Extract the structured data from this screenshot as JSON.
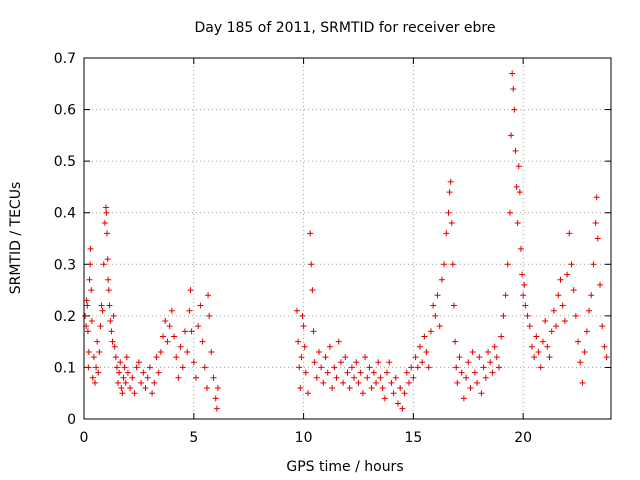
{
  "chart_data": {
    "type": "scatter",
    "title": "Day 185 of 2011, SRMTID for receiver ebre",
    "xlabel": "GPS time / hours",
    "ylabel": "SRMTID / TECUs",
    "xlim": [
      0,
      24
    ],
    "ylim": [
      0,
      0.7
    ],
    "xticks": [
      0,
      5,
      10,
      15,
      20
    ],
    "yticks": [
      0,
      0.1,
      0.2,
      0.3,
      0.4,
      0.5,
      0.6,
      0.7
    ],
    "grid": true,
    "marker": "+",
    "color": "#e00000",
    "series": [
      {
        "name": "SRMTID",
        "points": [
          [
            0.05,
            0.2
          ],
          [
            0.1,
            0.18
          ],
          [
            0.12,
            0.23
          ],
          [
            0.15,
            0.22
          ],
          [
            0.18,
            0.17
          ],
          [
            0.2,
            0.1
          ],
          [
            0.22,
            0.13
          ],
          [
            0.25,
            0.27
          ],
          [
            0.28,
            0.3
          ],
          [
            0.3,
            0.33
          ],
          [
            0.33,
            0.25
          ],
          [
            0.36,
            0.19
          ],
          [
            0.4,
            0.08
          ],
          [
            0.45,
            0.12
          ],
          [
            0.5,
            0.07
          ],
          [
            0.55,
            0.1
          ],
          [
            0.6,
            0.15
          ],
          [
            0.65,
            0.09
          ],
          [
            0.7,
            0.13
          ],
          [
            0.75,
            0.18
          ],
          [
            0.8,
            0.22
          ],
          [
            0.85,
            0.21
          ],
          [
            0.9,
            0.3
          ],
          [
            0.95,
            0.38
          ],
          [
            1.0,
            0.41
          ],
          [
            1.02,
            0.4
          ],
          [
            1.05,
            0.36
          ],
          [
            1.08,
            0.31
          ],
          [
            1.1,
            0.27
          ],
          [
            1.13,
            0.25
          ],
          [
            1.16,
            0.22
          ],
          [
            1.2,
            0.19
          ],
          [
            1.25,
            0.17
          ],
          [
            1.3,
            0.15
          ],
          [
            1.35,
            0.2
          ],
          [
            1.4,
            0.14
          ],
          [
            1.45,
            0.12
          ],
          [
            1.5,
            0.1
          ],
          [
            1.55,
            0.07
          ],
          [
            1.6,
            0.09
          ],
          [
            1.65,
            0.11
          ],
          [
            1.7,
            0.06
          ],
          [
            1.75,
            0.05
          ],
          [
            1.8,
            0.08
          ],
          [
            1.85,
            0.1
          ],
          [
            1.9,
            0.07
          ],
          [
            1.95,
            0.12
          ],
          [
            2.0,
            0.09
          ],
          [
            2.1,
            0.06
          ],
          [
            2.2,
            0.08
          ],
          [
            2.3,
            0.05
          ],
          [
            2.4,
            0.1
          ],
          [
            2.5,
            0.11
          ],
          [
            2.6,
            0.07
          ],
          [
            2.7,
            0.09
          ],
          [
            2.8,
            0.06
          ],
          [
            2.9,
            0.08
          ],
          [
            3.0,
            0.1
          ],
          [
            3.1,
            0.05
          ],
          [
            3.2,
            0.07
          ],
          [
            3.3,
            0.12
          ],
          [
            3.4,
            0.09
          ],
          [
            3.5,
            0.13
          ],
          [
            3.6,
            0.16
          ],
          [
            3.7,
            0.19
          ],
          [
            3.8,
            0.15
          ],
          [
            3.9,
            0.18
          ],
          [
            4.0,
            0.21
          ],
          [
            4.1,
            0.16
          ],
          [
            4.2,
            0.12
          ],
          [
            4.3,
            0.08
          ],
          [
            4.4,
            0.14
          ],
          [
            4.5,
            0.1
          ],
          [
            4.6,
            0.17
          ],
          [
            4.7,
            0.13
          ],
          [
            4.8,
            0.21
          ],
          [
            4.85,
            0.25
          ],
          [
            4.9,
            0.17
          ],
          [
            5.0,
            0.11
          ],
          [
            5.1,
            0.08
          ],
          [
            5.2,
            0.18
          ],
          [
            5.3,
            0.22
          ],
          [
            5.4,
            0.15
          ],
          [
            5.5,
            0.1
          ],
          [
            5.6,
            0.06
          ],
          [
            5.65,
            0.24
          ],
          [
            5.7,
            0.2
          ],
          [
            5.8,
            0.13
          ],
          [
            5.9,
            0.08
          ],
          [
            6.0,
            0.04
          ],
          [
            6.05,
            0.02
          ],
          [
            6.1,
            0.06
          ],
          [
            9.7,
            0.21
          ],
          [
            9.75,
            0.15
          ],
          [
            9.8,
            0.1
          ],
          [
            9.85,
            0.06
          ],
          [
            9.9,
            0.12
          ],
          [
            9.95,
            0.2
          ],
          [
            10.0,
            0.18
          ],
          [
            10.05,
            0.14
          ],
          [
            10.1,
            0.09
          ],
          [
            10.2,
            0.05
          ],
          [
            10.3,
            0.36
          ],
          [
            10.35,
            0.3
          ],
          [
            10.4,
            0.25
          ],
          [
            10.45,
            0.17
          ],
          [
            10.5,
            0.11
          ],
          [
            10.6,
            0.08
          ],
          [
            10.7,
            0.13
          ],
          [
            10.8,
            0.1
          ],
          [
            10.9,
            0.07
          ],
          [
            11.0,
            0.12
          ],
          [
            11.1,
            0.09
          ],
          [
            11.2,
            0.14
          ],
          [
            11.3,
            0.06
          ],
          [
            11.4,
            0.1
          ],
          [
            11.5,
            0.08
          ],
          [
            11.6,
            0.15
          ],
          [
            11.7,
            0.11
          ],
          [
            11.8,
            0.07
          ],
          [
            11.9,
            0.12
          ],
          [
            12.0,
            0.09
          ],
          [
            12.1,
            0.06
          ],
          [
            12.2,
            0.1
          ],
          [
            12.3,
            0.08
          ],
          [
            12.4,
            0.11
          ],
          [
            12.5,
            0.07
          ],
          [
            12.6,
            0.09
          ],
          [
            12.7,
            0.05
          ],
          [
            12.8,
            0.12
          ],
          [
            12.9,
            0.08
          ],
          [
            13.0,
            0.1
          ],
          [
            13.1,
            0.06
          ],
          [
            13.2,
            0.09
          ],
          [
            13.3,
            0.07
          ],
          [
            13.4,
            0.11
          ],
          [
            13.5,
            0.08
          ],
          [
            13.6,
            0.06
          ],
          [
            13.7,
            0.04
          ],
          [
            13.8,
            0.09
          ],
          [
            13.9,
            0.11
          ],
          [
            14.0,
            0.07
          ],
          [
            14.1,
            0.05
          ],
          [
            14.2,
            0.08
          ],
          [
            14.3,
            0.03
          ],
          [
            14.4,
            0.06
          ],
          [
            14.5,
            0.02
          ],
          [
            14.6,
            0.05
          ],
          [
            14.7,
            0.09
          ],
          [
            14.8,
            0.07
          ],
          [
            14.9,
            0.1
          ],
          [
            15.0,
            0.08
          ],
          [
            15.1,
            0.12
          ],
          [
            15.2,
            0.1
          ],
          [
            15.3,
            0.14
          ],
          [
            15.4,
            0.11
          ],
          [
            15.5,
            0.16
          ],
          [
            15.6,
            0.13
          ],
          [
            15.7,
            0.1
          ],
          [
            15.8,
            0.17
          ],
          [
            15.9,
            0.22
          ],
          [
            16.0,
            0.2
          ],
          [
            16.1,
            0.24
          ],
          [
            16.2,
            0.18
          ],
          [
            16.3,
            0.27
          ],
          [
            16.4,
            0.3
          ],
          [
            16.5,
            0.36
          ],
          [
            16.6,
            0.4
          ],
          [
            16.65,
            0.44
          ],
          [
            16.7,
            0.46
          ],
          [
            16.75,
            0.38
          ],
          [
            16.8,
            0.3
          ],
          [
            16.85,
            0.22
          ],
          [
            16.9,
            0.15
          ],
          [
            16.95,
            0.1
          ],
          [
            17.0,
            0.07
          ],
          [
            17.1,
            0.12
          ],
          [
            17.2,
            0.09
          ],
          [
            17.3,
            0.04
          ],
          [
            17.4,
            0.08
          ],
          [
            17.5,
            0.11
          ],
          [
            17.6,
            0.06
          ],
          [
            17.7,
            0.13
          ],
          [
            17.8,
            0.09
          ],
          [
            17.9,
            0.07
          ],
          [
            18.0,
            0.12
          ],
          [
            18.1,
            0.05
          ],
          [
            18.2,
            0.1
          ],
          [
            18.3,
            0.08
          ],
          [
            18.4,
            0.13
          ],
          [
            18.5,
            0.11
          ],
          [
            18.6,
            0.09
          ],
          [
            18.7,
            0.14
          ],
          [
            18.8,
            0.12
          ],
          [
            18.9,
            0.1
          ],
          [
            19.0,
            0.16
          ],
          [
            19.1,
            0.2
          ],
          [
            19.2,
            0.24
          ],
          [
            19.3,
            0.3
          ],
          [
            19.4,
            0.4
          ],
          [
            19.45,
            0.55
          ],
          [
            19.5,
            0.67
          ],
          [
            19.55,
            0.64
          ],
          [
            19.6,
            0.6
          ],
          [
            19.65,
            0.52
          ],
          [
            19.7,
            0.45
          ],
          [
            19.75,
            0.38
          ],
          [
            19.8,
            0.49
          ],
          [
            19.85,
            0.44
          ],
          [
            19.9,
            0.33
          ],
          [
            19.95,
            0.28
          ],
          [
            20.0,
            0.24
          ],
          [
            20.05,
            0.26
          ],
          [
            20.1,
            0.22
          ],
          [
            20.2,
            0.2
          ],
          [
            20.3,
            0.18
          ],
          [
            20.4,
            0.14
          ],
          [
            20.5,
            0.12
          ],
          [
            20.6,
            0.16
          ],
          [
            20.7,
            0.13
          ],
          [
            20.8,
            0.1
          ],
          [
            20.9,
            0.15
          ],
          [
            21.0,
            0.19
          ],
          [
            21.1,
            0.14
          ],
          [
            21.2,
            0.12
          ],
          [
            21.3,
            0.17
          ],
          [
            21.4,
            0.21
          ],
          [
            21.5,
            0.18
          ],
          [
            21.6,
            0.24
          ],
          [
            21.7,
            0.27
          ],
          [
            21.8,
            0.22
          ],
          [
            21.9,
            0.19
          ],
          [
            22.0,
            0.28
          ],
          [
            22.1,
            0.36
          ],
          [
            22.2,
            0.3
          ],
          [
            22.3,
            0.25
          ],
          [
            22.4,
            0.2
          ],
          [
            22.5,
            0.15
          ],
          [
            22.6,
            0.11
          ],
          [
            22.7,
            0.07
          ],
          [
            22.8,
            0.13
          ],
          [
            22.9,
            0.17
          ],
          [
            23.0,
            0.21
          ],
          [
            23.1,
            0.24
          ],
          [
            23.2,
            0.3
          ],
          [
            23.3,
            0.38
          ],
          [
            23.35,
            0.43
          ],
          [
            23.4,
            0.35
          ],
          [
            23.5,
            0.26
          ],
          [
            23.6,
            0.18
          ],
          [
            23.7,
            0.14
          ],
          [
            23.8,
            0.12
          ]
        ]
      }
    ]
  }
}
